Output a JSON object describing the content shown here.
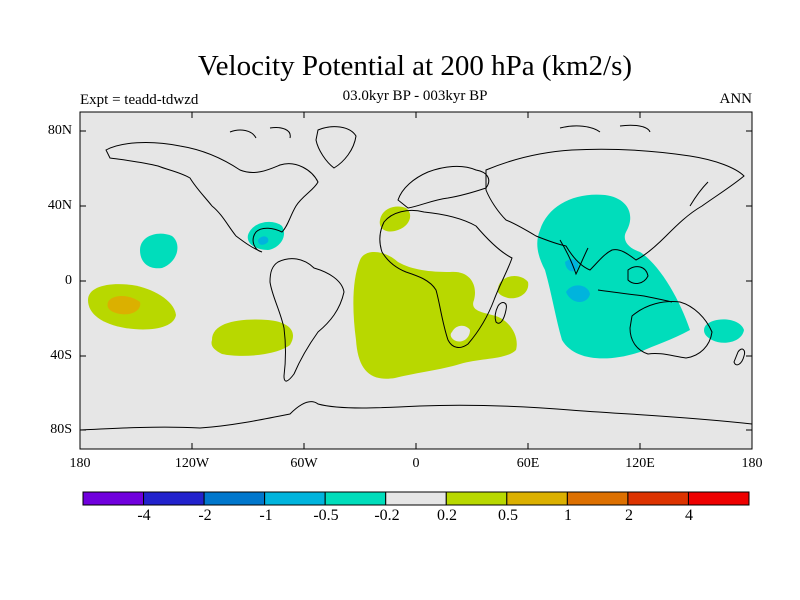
{
  "title": "Velocity Potential at 200 hPa (km2/s)",
  "subtitle": "03.0kyr BP - 003kyr BP",
  "experiment": "Expt = teadd-tdwzd",
  "season": "ANN",
  "axes": {
    "y_ticks": [
      "80N",
      "40N",
      "0",
      "40S",
      "80S"
    ],
    "x_ticks": [
      "180",
      "120W",
      "60W",
      "0",
      "60E",
      "120E",
      "180"
    ]
  },
  "colorbar": {
    "colors": [
      "#7000dd",
      "#2222cc",
      "#0077cc",
      "#00b4dd",
      "#00ddbb",
      "#e6e6e6",
      "#b8d800",
      "#dbb000",
      "#dd7000",
      "#dd3300",
      "#ee0000"
    ],
    "labels": [
      "-4",
      "-2",
      "-1",
      "-0.5",
      "-0.2",
      "0.2",
      "0.5",
      "1",
      "2",
      "4"
    ]
  },
  "colors": {
    "background": "#e6e6e6",
    "positive_weak": "#b8d800",
    "positive_mid": "#dbb000",
    "negative_weak": "#00ddbb",
    "negative_mid": "#00b4dd"
  }
}
